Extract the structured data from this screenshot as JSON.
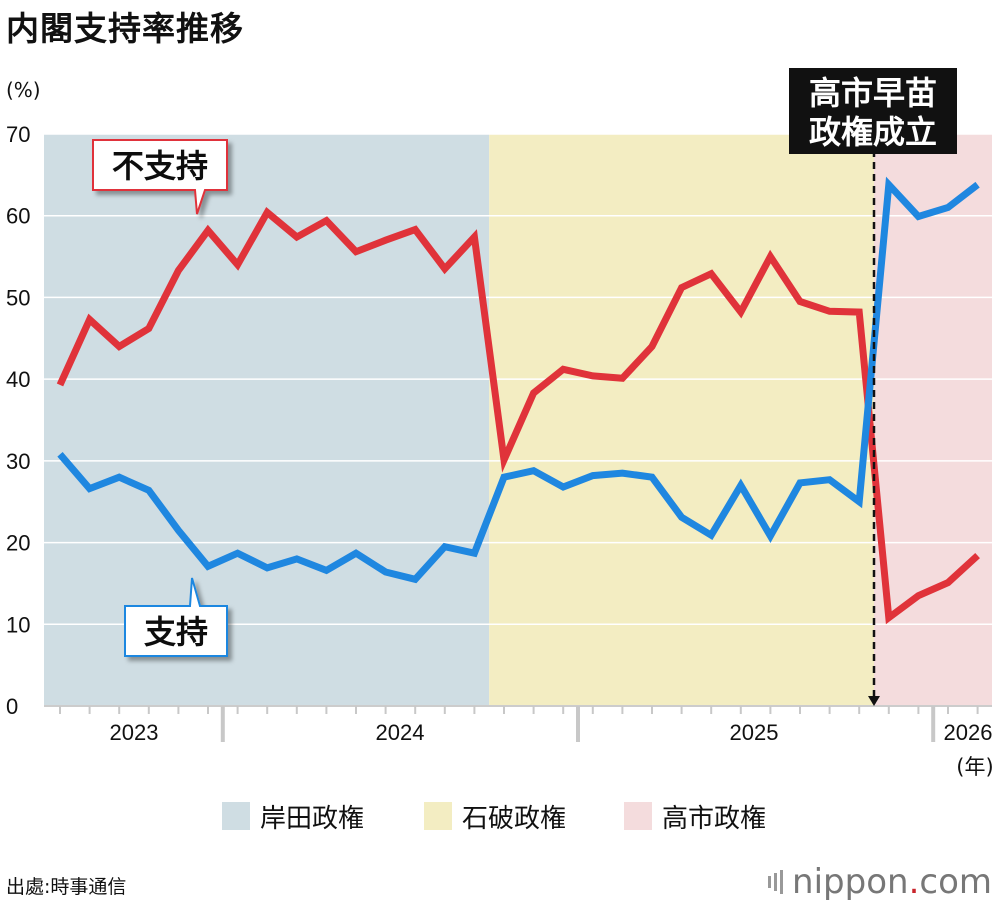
{
  "title": "内閣支持率推移",
  "unit_label": "(%)",
  "colors": {
    "support": "#1f87e0",
    "nonsupport": "#e0333a",
    "kishida_bg": "#cfdde3",
    "ishiba_bg": "#f3edc2",
    "takaichi_bg": "#f4dcdd",
    "brand_dot": "#c9252c"
  },
  "chart_data": {
    "type": "line",
    "ylim": [
      0,
      70
    ],
    "y_ticks": [
      "0",
      "10",
      "20",
      "30",
      "40",
      "50",
      "60",
      "70"
    ],
    "x_year_labels": [
      "2023",
      "2024",
      "2025",
      "2026"
    ],
    "x_unit_label": "(年)",
    "grid": true,
    "series": [
      {
        "name": "不支持",
        "color": "#e0333a",
        "values": [
          39.3,
          47.3,
          44.0,
          46.2,
          53.3,
          58.2,
          54.0,
          60.4,
          57.4,
          59.4,
          55.6,
          57.0,
          58.3,
          53.5,
          57.4,
          30.1,
          38.3,
          41.2,
          40.4,
          40.1,
          44.0,
          51.2,
          52.9,
          48.2,
          55.0,
          49.5,
          48.3,
          48.2,
          10.8,
          13.5,
          15.1,
          18.4
        ]
      },
      {
        "name": "支持",
        "color": "#1f87e0",
        "values": [
          30.8,
          26.6,
          28.0,
          26.4,
          21.5,
          17.1,
          18.7,
          16.9,
          18.0,
          16.6,
          18.7,
          16.4,
          15.5,
          19.5,
          18.7,
          28.0,
          28.8,
          26.8,
          28.2,
          28.5,
          28.0,
          23.1,
          20.9,
          27.0,
          20.8,
          27.3,
          27.7,
          25.0,
          63.8,
          59.9,
          61.0,
          63.8
        ]
      }
    ],
    "periods": [
      {
        "name": "岸田政権",
        "from_index": 0,
        "to_index": 14
      },
      {
        "name": "石破政権",
        "from_index": 15,
        "to_index": 27
      },
      {
        "name": "高市政権",
        "from_index": 28,
        "to_index": 31
      }
    ],
    "annotations": {
      "nonsupport_callout": "不支持",
      "support_callout": "支持",
      "takaichi_start_line1": "高市早苗",
      "takaichi_start_line2": "政権成立"
    }
  },
  "legend": [
    {
      "label": "岸田政権",
      "color": "#cfdde3"
    },
    {
      "label": "石破政権",
      "color": "#f3edc2"
    },
    {
      "label": "高市政権",
      "color": "#f4dcdd"
    }
  ],
  "source": "出處:時事通信",
  "brand": {
    "name": "nippon",
    "dot": ".",
    "suffix": "com"
  }
}
